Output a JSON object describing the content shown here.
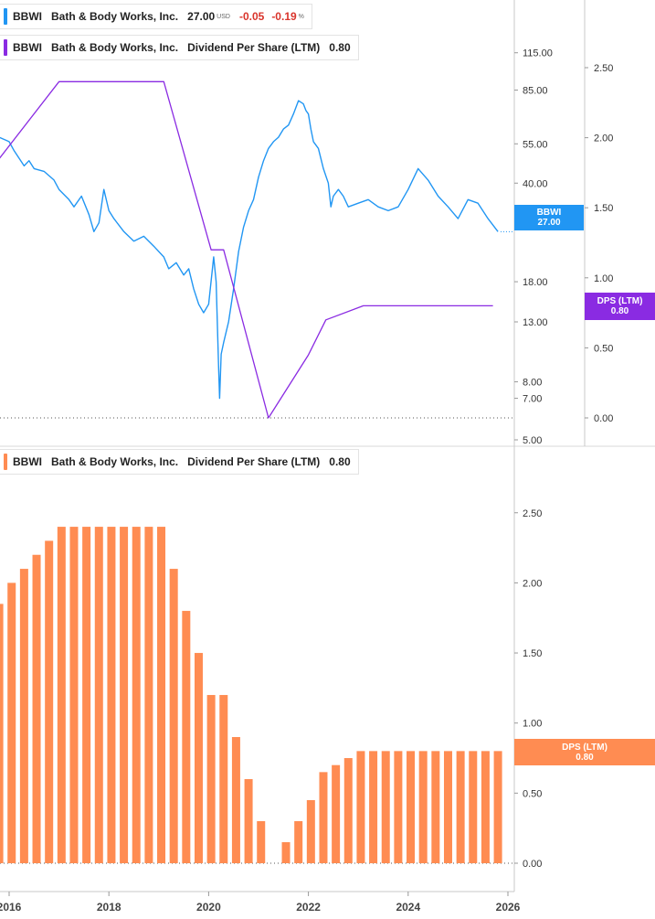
{
  "price_legend": {
    "ticker": "BBWI",
    "name": "Bath & Body Works, Inc.",
    "price": "27.00",
    "currency": "USD",
    "change": "-0.05",
    "change_pct": "-0.19",
    "pct_sign": "%",
    "color": "#2196f3"
  },
  "dps_legend_top": {
    "ticker": "BBWI",
    "name": "Bath & Body Works, Inc.",
    "metric": "Dividend Per Share (LTM)",
    "value": "0.80",
    "color": "#8a2be2"
  },
  "dps_legend_bottom": {
    "ticker": "BBWI",
    "name": "Bath & Body Works, Inc.",
    "metric": "Dividend Per Share (LTM)",
    "value": "0.80",
    "color": "#ff8c52"
  },
  "tags": {
    "price_tag": {
      "line1": "BBWI",
      "line2": "27.00",
      "color": "#2196f3"
    },
    "dps_tag_top": {
      "line1": "DPS (LTM)",
      "line2": "0.80",
      "color": "#8a2be2"
    },
    "dps_tag_bottom": {
      "line1": "DPS (LTM)",
      "line2": "0.80",
      "color": "#ff8c52"
    }
  },
  "chart_data": [
    {
      "type": "line",
      "panel": "top",
      "y_scale": "log",
      "price_axis": {
        "ticks": [
          115,
          85,
          55,
          40,
          18,
          13,
          8,
          7,
          5
        ],
        "tick_labels": [
          "115.00",
          "85.00",
          "55.00",
          "40.00",
          "18.00",
          "13.00",
          "8.00",
          "7.00",
          "5.00"
        ],
        "range": [
          5,
          150
        ]
      },
      "dps_axis": {
        "ticks": [
          2.5,
          2.0,
          1.5,
          1.0,
          0.5,
          0.0
        ],
        "tick_labels": [
          "2.50",
          "2.00",
          "1.50",
          "1.00",
          "0.50",
          "0.00"
        ],
        "range": [
          0,
          2.5
        ]
      },
      "series": [
        {
          "name": "BBWI",
          "color": "#2196f3",
          "x": [
            2015.8,
            2016.0,
            2016.1,
            2016.3,
            2016.4,
            2016.5,
            2016.7,
            2016.9,
            2017.0,
            2017.2,
            2017.3,
            2017.45,
            2017.6,
            2017.7,
            2017.8,
            2017.9,
            2018.0,
            2018.1,
            2018.3,
            2018.5,
            2018.7,
            2018.9,
            2019.1,
            2019.2,
            2019.35,
            2019.5,
            2019.6,
            2019.7,
            2019.8,
            2019.9,
            2020.0,
            2020.1,
            2020.15,
            2020.2,
            2020.22,
            2020.25,
            2020.3,
            2020.4,
            2020.5,
            2020.6,
            2020.7,
            2020.8,
            2020.9,
            2021.0,
            2021.1,
            2021.2,
            2021.3,
            2021.4,
            2021.5,
            2021.6,
            2021.7,
            2021.8,
            2021.9,
            2021.95,
            2022.0,
            2022.05,
            2022.1,
            2022.2,
            2022.3,
            2022.4,
            2022.45,
            2022.5,
            2022.6,
            2022.7,
            2022.8,
            2023.0,
            2023.2,
            2023.4,
            2023.6,
            2023.8,
            2024.0,
            2024.2,
            2024.4,
            2024.6,
            2024.8,
            2025.0,
            2025.2,
            2025.4,
            2025.6,
            2025.8
          ],
          "values": [
            58,
            56,
            52,
            46,
            48,
            45,
            44,
            41,
            38,
            35,
            33,
            36,
            31,
            27,
            29,
            38,
            32,
            30,
            27,
            25,
            26,
            24,
            22,
            20,
            21,
            19,
            20,
            17,
            15,
            14,
            15,
            22,
            18,
            9,
            7,
            10,
            11,
            13,
            17,
            23,
            28,
            32,
            35,
            42,
            48,
            53,
            56,
            58,
            62,
            64,
            70,
            78,
            76,
            72,
            70,
            62,
            56,
            53,
            45,
            40,
            33,
            36,
            38,
            36,
            33,
            34,
            35,
            33,
            32,
            33,
            38,
            45,
            41,
            36,
            33,
            30,
            35,
            34,
            30,
            27
          ]
        },
        {
          "name": "Dividend Per Share (LTM)",
          "color": "#8a2be2",
          "x": [
            2015.8,
            2017.0,
            2019.1,
            2020.05,
            2020.3,
            2021.2,
            2022.0,
            2022.35,
            2023.1,
            2025.7
          ],
          "values": [
            1.85,
            2.4,
            2.4,
            1.2,
            1.2,
            0.0,
            0.45,
            0.7,
            0.8,
            0.8
          ]
        }
      ]
    },
    {
      "type": "bar",
      "panel": "bottom",
      "title": "Dividend Per Share (LTM)",
      "ylim": [
        0,
        2.7
      ],
      "y_ticks": [
        0.0,
        0.5,
        1.0,
        1.5,
        2.0,
        2.5
      ],
      "y_tick_labels": [
        "0.00",
        "0.50",
        "1.00",
        "1.50",
        "2.00",
        "2.50"
      ],
      "x_ticks": [
        2016,
        2018,
        2020,
        2022,
        2024,
        2026
      ],
      "x_tick_labels": [
        "2016",
        "2018",
        "2020",
        "2022",
        "2024",
        "2026"
      ],
      "color": "#ff8c52",
      "x": [
        2015.8,
        2016.05,
        2016.3,
        2016.55,
        2016.8,
        2017.05,
        2017.3,
        2017.55,
        2017.8,
        2018.05,
        2018.3,
        2018.55,
        2018.8,
        2019.05,
        2019.3,
        2019.55,
        2019.8,
        2020.05,
        2020.3,
        2020.55,
        2020.8,
        2021.05,
        2021.3,
        2021.55,
        2021.8,
        2022.05,
        2022.3,
        2022.55,
        2022.8,
        2023.05,
        2023.3,
        2023.55,
        2023.8,
        2024.05,
        2024.3,
        2024.55,
        2024.8,
        2025.05,
        2025.3,
        2025.55,
        2025.8
      ],
      "values": [
        1.85,
        2.0,
        2.1,
        2.2,
        2.3,
        2.4,
        2.4,
        2.4,
        2.4,
        2.4,
        2.4,
        2.4,
        2.4,
        2.4,
        2.1,
        1.8,
        1.5,
        1.2,
        1.2,
        0.9,
        0.6,
        0.3,
        0.0,
        0.15,
        0.3,
        0.45,
        0.65,
        0.7,
        0.75,
        0.8,
        0.8,
        0.8,
        0.8,
        0.8,
        0.8,
        0.8,
        0.8,
        0.8,
        0.8,
        0.8,
        0.8
      ]
    }
  ]
}
